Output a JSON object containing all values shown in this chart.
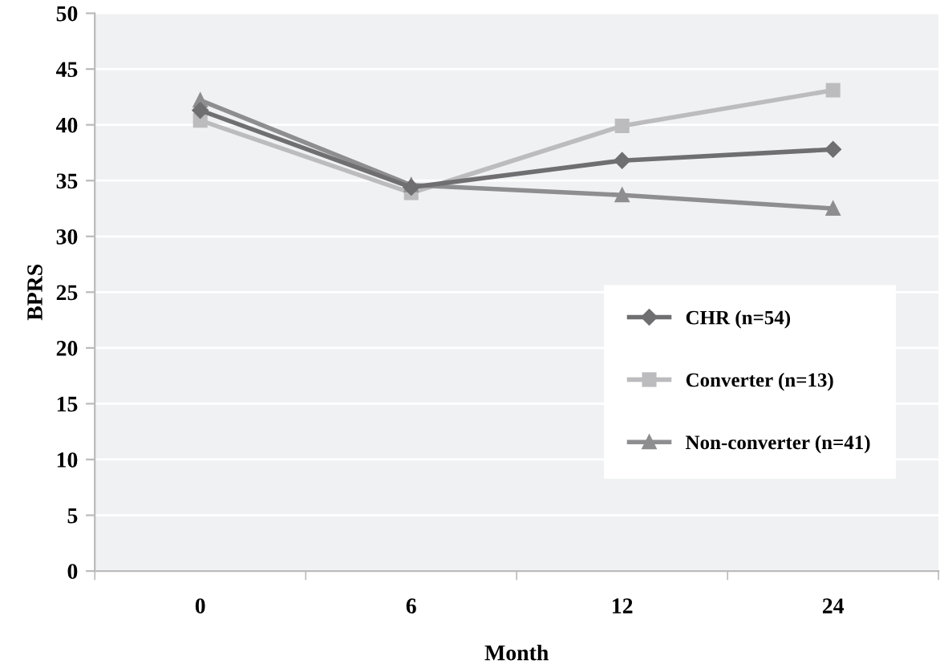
{
  "chart_data": {
    "type": "line",
    "xlabel": "Month",
    "ylabel": "BPRS",
    "categories": [
      "0",
      "6",
      "12",
      "24"
    ],
    "series": [
      {
        "name": "CHR (n=54)",
        "color": "#6f6f71",
        "marker": "diamond",
        "values": [
          41.3,
          34.4,
          36.8,
          37.8
        ]
      },
      {
        "name": "Converter (n=13)",
        "color": "#bcbcbe",
        "marker": "square",
        "values": [
          40.4,
          33.9,
          39.9,
          43.1
        ]
      },
      {
        "name": "Non-converter (n=41)",
        "color": "#8e8e90",
        "marker": "triangle",
        "values": [
          42.2,
          34.6,
          33.7,
          32.5
        ]
      }
    ],
    "ylim": [
      0,
      50
    ],
    "yticks": [
      0,
      5,
      10,
      15,
      20,
      25,
      30,
      35,
      40,
      45,
      50
    ],
    "grid": "y",
    "legend": "lower right",
    "line_style": "solid"
  }
}
